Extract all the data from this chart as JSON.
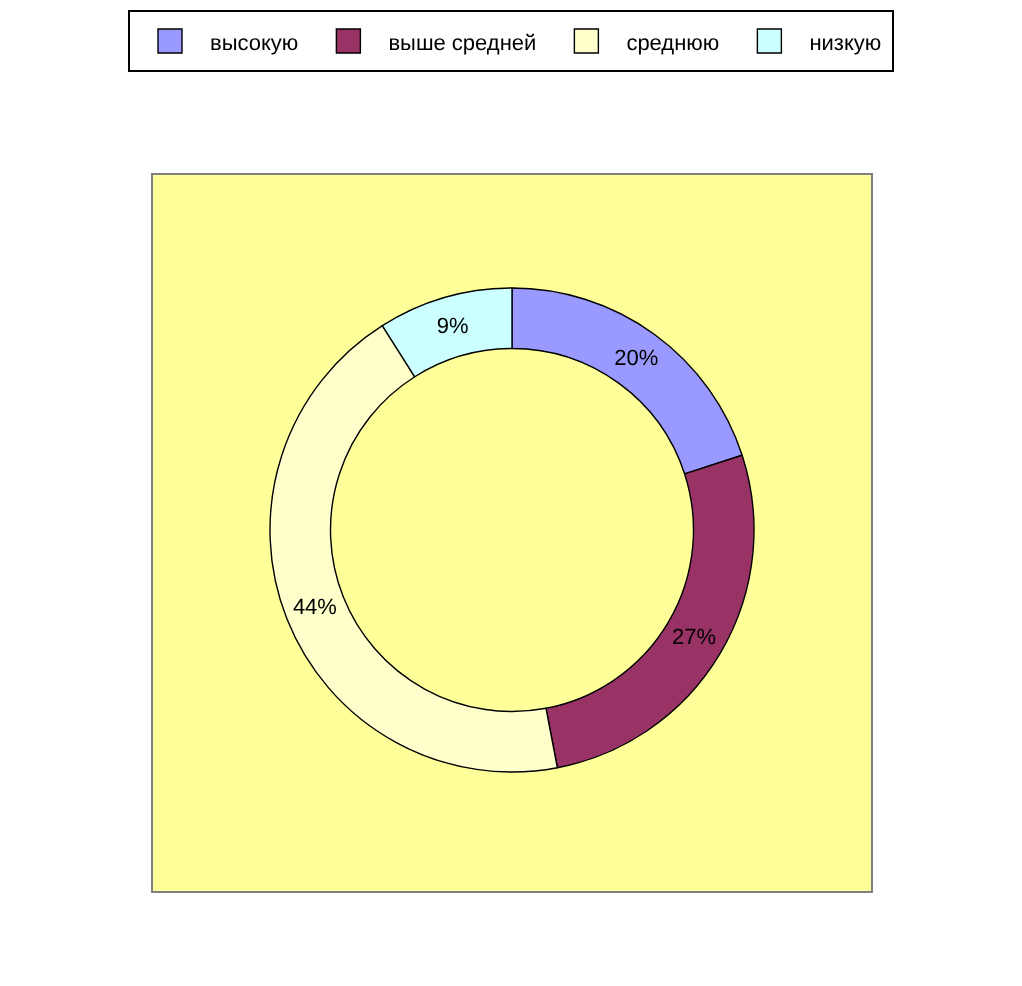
{
  "chart_data": {
    "type": "donut",
    "categories": [
      "высокую",
      "выше средней",
      "среднюю",
      "низкую"
    ],
    "values": [
      20,
      27,
      44,
      9
    ],
    "colors": [
      "#9999ff",
      "#993366",
      "#ffffcc",
      "#ccffff"
    ],
    "value_labels": [
      "20%",
      "27%",
      "44%",
      "9%"
    ],
    "legend": "top"
  }
}
